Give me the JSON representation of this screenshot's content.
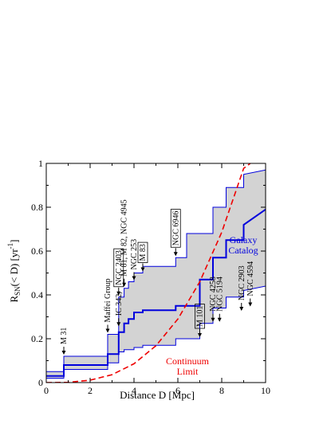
{
  "chart_data": {
    "type": "line",
    "xlabel": "Distance D [Mpc]",
    "ylabel": "R_SN(< D) [yr^-1]",
    "xlim": [
      0,
      10
    ],
    "ylim": [
      0,
      1
    ],
    "xticks": [
      0,
      2,
      4,
      6,
      8,
      10
    ],
    "yticks": [
      0,
      0.2,
      0.4,
      0.6,
      0.8,
      1
    ],
    "x_tick_labels": [
      "0",
      "2",
      "4",
      "6",
      "8",
      "10"
    ],
    "y_tick_labels": [
      "0",
      "0.2",
      "0.4",
      "0.6",
      "0.8",
      "1"
    ],
    "colors": {
      "band": "#d3d3d3",
      "catalog": "#0000dd",
      "continuum": "#ee0000",
      "axis": "#000000"
    },
    "band_upper": {
      "x": [
        0,
        0.8,
        0.8,
        2.8,
        2.8,
        3.3,
        3.3,
        3.55,
        3.55,
        3.75,
        3.75,
        4.0,
        4.0,
        4.4,
        4.4,
        5.9,
        5.9,
        6.4,
        6.4,
        7.6,
        7.6,
        8.2,
        8.2,
        9.0,
        9.0,
        10
      ],
      "y": [
        0.05,
        0.05,
        0.12,
        0.12,
        0.22,
        0.22,
        0.39,
        0.39,
        0.43,
        0.43,
        0.46,
        0.46,
        0.5,
        0.5,
        0.53,
        0.53,
        0.57,
        0.57,
        0.68,
        0.68,
        0.8,
        0.8,
        0.89,
        0.89,
        0.95,
        0.97
      ]
    },
    "band_lower": {
      "x": [
        0,
        0.8,
        0.8,
        2.8,
        2.8,
        3.3,
        3.3,
        3.55,
        3.55,
        4.0,
        4.0,
        4.4,
        4.4,
        5.9,
        5.9,
        7.0,
        7.0,
        7.6,
        7.6,
        8.2,
        8.2,
        9.0,
        9.0,
        10
      ],
      "y": [
        0.02,
        0.02,
        0.06,
        0.06,
        0.09,
        0.09,
        0.14,
        0.14,
        0.15,
        0.15,
        0.16,
        0.16,
        0.17,
        0.17,
        0.2,
        0.2,
        0.27,
        0.27,
        0.34,
        0.34,
        0.39,
        0.39,
        0.42,
        0.44
      ]
    },
    "series": [
      {
        "name": "Galaxy Catalog",
        "x": [
          0,
          0.8,
          0.8,
          2.8,
          2.8,
          3.3,
          3.3,
          3.55,
          3.55,
          3.75,
          3.75,
          4.0,
          4.0,
          4.4,
          4.4,
          5.9,
          5.9,
          7.0,
          7.0,
          7.6,
          7.6,
          8.2,
          8.2,
          9.0,
          9.0,
          10
        ],
        "y": [
          0.03,
          0.03,
          0.08,
          0.08,
          0.13,
          0.13,
          0.23,
          0.23,
          0.27,
          0.27,
          0.29,
          0.29,
          0.32,
          0.32,
          0.33,
          0.33,
          0.35,
          0.35,
          0.47,
          0.47,
          0.57,
          0.57,
          0.65,
          0.65,
          0.72,
          0.79
        ]
      },
      {
        "name": "Continuum Limit",
        "x": [
          0,
          1,
          2,
          3,
          4,
          5,
          6,
          7,
          8,
          9,
          9.3
        ],
        "y": [
          0.0,
          0.001,
          0.011,
          0.036,
          0.086,
          0.168,
          0.29,
          0.46,
          0.686,
          0.977,
          1.0
        ]
      }
    ],
    "annotations": [
      {
        "text": "M 31",
        "x": 0.8,
        "y": 0.12,
        "boxed": false
      },
      {
        "text": "Maffei Group",
        "x": 2.8,
        "y": 0.22,
        "boxed": false
      },
      {
        "text": "IC 342,",
        "x": 3.3,
        "y": 0.25,
        "boxed": false
      },
      {
        "text": "NGC 2403",
        "x": 3.3,
        "y": 0.39,
        "boxed": true
      },
      {
        "text": "M 81, M 82, NGC 4945",
        "x": 3.55,
        "y": 0.43,
        "boxed": false
      },
      {
        "text": "NGC 253",
        "x": 4.0,
        "y": 0.46,
        "boxed": false
      },
      {
        "text": "M 83",
        "x": 4.4,
        "y": 0.5,
        "boxed": true
      },
      {
        "text": "NGC 6946",
        "x": 5.9,
        "y": 0.57,
        "boxed": true
      },
      {
        "text": "M 101",
        "x": 7.0,
        "y": 0.2,
        "boxed": true
      },
      {
        "text": "NGC 4258",
        "x": 7.6,
        "y": 0.27,
        "boxed": false
      },
      {
        "text": "NGC 5194",
        "x": 7.9,
        "y": 0.27,
        "boxed": false
      },
      {
        "text": "NGC 2903",
        "x": 8.9,
        "y": 0.32,
        "boxed": false
      },
      {
        "text": "NGC 4594",
        "x": 9.3,
        "y": 0.34,
        "boxed": false
      }
    ],
    "legend": [
      {
        "lines": [
          "Galaxy",
          "Catalog"
        ],
        "color": "#0000dd"
      },
      {
        "lines": [
          "Continuum",
          "Limit"
        ],
        "color": "#ee0000"
      }
    ]
  }
}
